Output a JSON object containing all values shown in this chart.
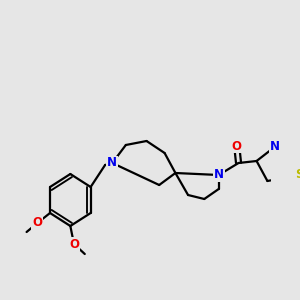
{
  "bg_color": "#e6e6e6",
  "bond_color": "#000000",
  "bond_width": 1.6,
  "atom_colors": {
    "N": "#0000ee",
    "O": "#ee0000",
    "S": "#bbbb00",
    "C": "#000000"
  },
  "font_size_atom": 8.5,
  "font_size_small": 7.5
}
